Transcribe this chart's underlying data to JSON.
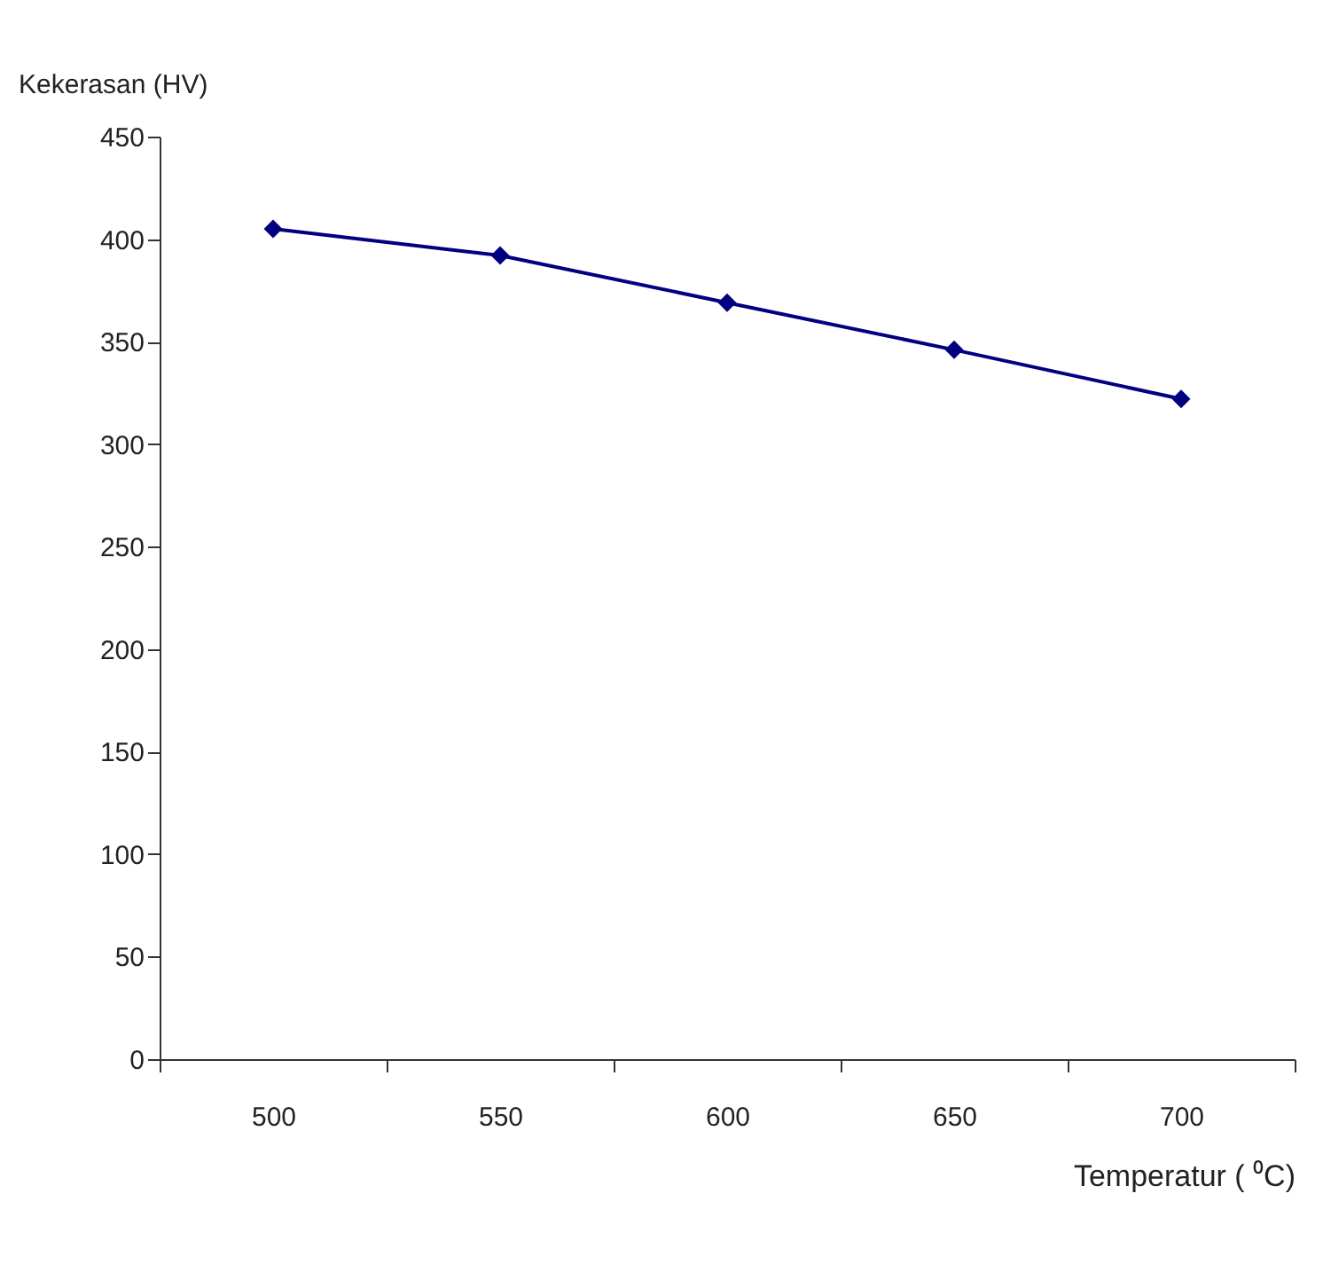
{
  "chart_data": {
    "type": "line",
    "xlabel": "Temperatur ( ⁰C)",
    "ylabel": "Kekerasan (HV)",
    "categories": [
      "500",
      "550",
      "600",
      "650",
      "700"
    ],
    "series": [
      {
        "color": "#000080",
        "values": [
          405,
          392,
          369,
          346,
          322
        ]
      }
    ],
    "ylim": [
      0,
      450
    ],
    "yticks": [
      0,
      50,
      100,
      150,
      200,
      250,
      300,
      350,
      400,
      450
    ],
    "grid": false,
    "marker": "diamond",
    "line_style": "solid"
  }
}
